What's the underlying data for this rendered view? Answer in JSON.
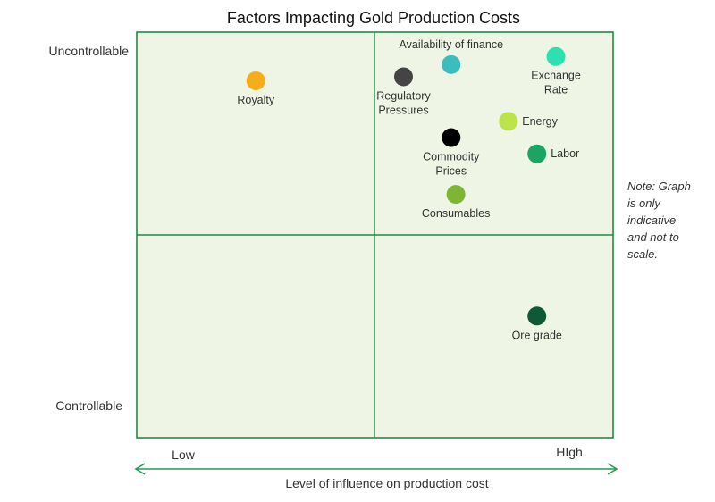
{
  "chart_data": {
    "type": "scatter",
    "title": "Factors Impacting Gold Production Costs",
    "xlabel": "Level of influence on production cost",
    "x_tick_labels": {
      "low": "Low",
      "high": "HIgh"
    },
    "y_tick_labels": {
      "top": "Uncontrollable",
      "bottom": "Controllable"
    },
    "xlim": [
      0,
      10
    ],
    "ylim": [
      0,
      10
    ],
    "note": [
      "Note: Graph",
      "is only",
      "indicative",
      "and not to",
      "scale."
    ],
    "colors": {
      "panel_fill": "#eef5e4",
      "grid_line": "#1e8c44",
      "arrow": "#2a9a55"
    },
    "points": [
      {
        "name": "Royalty",
        "label_lines": [
          "Royalty"
        ],
        "x": 2.5,
        "y": 8.8,
        "color": "#f5ad1c",
        "label_pos": "below"
      },
      {
        "name": "Availability of finance",
        "label_lines": [
          "Availability of finance"
        ],
        "x": 6.6,
        "y": 9.2,
        "color": "#3cbdbd",
        "label_pos": "above"
      },
      {
        "name": "Exchange Rate",
        "label_lines": [
          "Exchange",
          "Rate"
        ],
        "x": 8.8,
        "y": 9.4,
        "color": "#2ee0b0",
        "label_pos": "below"
      },
      {
        "name": "Regulatory Pressures",
        "label_lines": [
          "Regulatory",
          "Pressures"
        ],
        "x": 5.6,
        "y": 8.9,
        "color": "#444444",
        "label_pos": "below"
      },
      {
        "name": "Energy",
        "label_lines": [
          "Energy"
        ],
        "x": 7.8,
        "y": 7.8,
        "color": "#bce44a",
        "label_pos": "right"
      },
      {
        "name": "Commodity Prices",
        "label_lines": [
          "Commodity",
          "Prices"
        ],
        "x": 6.6,
        "y": 7.4,
        "color": "#000000",
        "label_pos": "below"
      },
      {
        "name": "Labor",
        "label_lines": [
          "Labor"
        ],
        "x": 8.4,
        "y": 7.0,
        "color": "#1aa564",
        "label_pos": "right"
      },
      {
        "name": "Consumables",
        "label_lines": [
          "Consumables"
        ],
        "x": 6.7,
        "y": 6.0,
        "color": "#7eb532",
        "label_pos": "below"
      },
      {
        "name": "Ore grade",
        "label_lines": [
          "Ore grade"
        ],
        "x": 8.4,
        "y": 3.0,
        "color": "#0e5a37",
        "label_pos": "below"
      }
    ]
  }
}
